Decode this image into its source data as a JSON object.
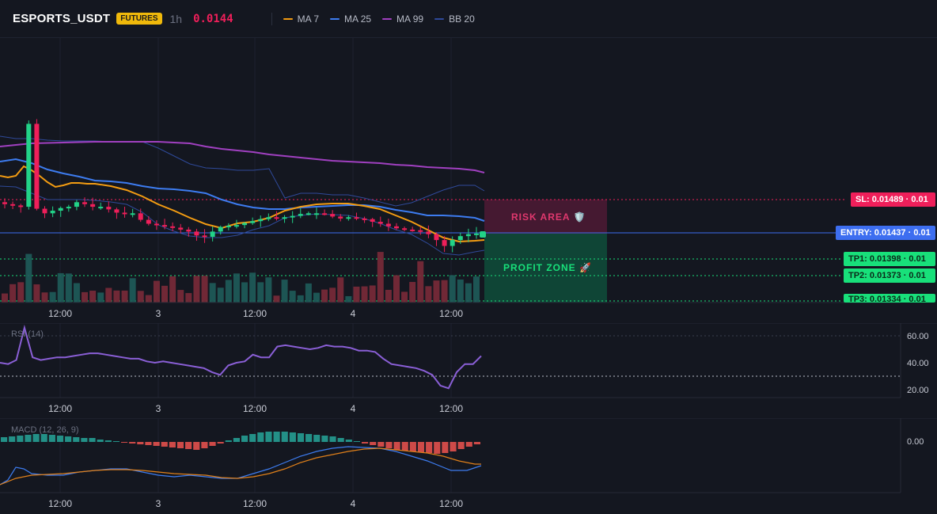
{
  "header": {
    "symbol": "ESPORTS_USDT",
    "badge": "FUTURES",
    "timeframe": "1h",
    "price": "0.0144",
    "indicators": [
      {
        "label": "MA 7",
        "color": "#f39c12"
      },
      {
        "label": "MA 25",
        "color": "#3d7cf0"
      },
      {
        "label": "MA 99",
        "color": "#a040c0"
      },
      {
        "label": "BB 20",
        "color": "#2f4a9a"
      }
    ]
  },
  "time_axis": [
    "12:00",
    "3",
    "12:00",
    "4",
    "12:00"
  ],
  "levels": {
    "sl": {
      "label": "SL: 0.01489 · 0.01",
      "color": "#ef1f5a"
    },
    "entry": {
      "label": "ENTRY: 0.01437 · 0.01",
      "color": "#3d6ef0"
    },
    "tp1": {
      "label": "TP1: 0.01398 · 0.01",
      "color": "#18e07a"
    },
    "tp2": {
      "label": "TP2: 0.01373 · 0.01",
      "color": "#18e07a"
    },
    "tp3": {
      "label": "TP3: 0.01334 · 0.01",
      "color": "#18e07a"
    }
  },
  "zones": {
    "risk": "RISK AREA 🛡️",
    "profit": "PROFIT ZONE 🚀"
  },
  "rsi": {
    "label": "RSI (14)",
    "axis": [
      "60.00",
      "40.00",
      "20.00"
    ]
  },
  "macd": {
    "label": "MACD (12, 26, 9)",
    "axis": [
      "0.00"
    ]
  },
  "chart_data": {
    "type": "line",
    "price_series": {
      "close": [
        0.01482,
        0.0148,
        0.01478,
        0.01605,
        0.01475,
        0.01468,
        0.01472,
        0.01476,
        0.01478,
        0.01485,
        0.01482,
        0.01478,
        0.01478,
        0.01474,
        0.01469,
        0.01467,
        0.01468,
        0.01458,
        0.01452,
        0.0145,
        0.01448,
        0.01446,
        0.01443,
        0.0144,
        0.01434,
        0.01432,
        0.0144,
        0.01447,
        0.01449,
        0.0145,
        0.01453,
        0.01456,
        0.01459,
        0.01462,
        0.01461,
        0.01462,
        0.01464,
        0.01467,
        0.01468,
        0.01468,
        0.01467,
        0.01463,
        0.0146,
        0.01462,
        0.0146,
        0.01459,
        0.01455,
        0.01452,
        0.01448,
        0.01445,
        0.01443,
        0.01442,
        0.0144,
        0.01436,
        0.01427,
        0.01418,
        0.01427,
        0.01433,
        0.01436,
        0.01437
      ]
    },
    "ma99": [
      0.0151,
      0.01509,
      0.01508,
      0.01507,
      0.01505,
      0.01503,
      0.015,
      0.01496,
      0.0149,
      0.01486,
      0.01483
    ],
    "rsi14": [
      40,
      39,
      42,
      66,
      44,
      42,
      43,
      44,
      44,
      45,
      46,
      47,
      47,
      46,
      45,
      44,
      43,
      43,
      41,
      40,
      41,
      40,
      39,
      38,
      37,
      36,
      33,
      31,
      38,
      40,
      41,
      46,
      44,
      44,
      52,
      53,
      52,
      51,
      50,
      51,
      53,
      52,
      52,
      51,
      49,
      49,
      48,
      43,
      39,
      38,
      37,
      36,
      34,
      31,
      23,
      21,
      33,
      39,
      39,
      45
    ],
    "macd_histogram": [
      0.6,
      0.7,
      0.8,
      0.9,
      1.0,
      1.0,
      0.9,
      0.8,
      0.7,
      0.6,
      0.5,
      0.5,
      0.3,
      0.2,
      0.1,
      -0.1,
      -0.2,
      -0.3,
      -0.4,
      -0.5,
      -0.6,
      -0.7,
      -0.8,
      -0.9,
      -1.0,
      -0.8,
      -0.5,
      -0.2,
      0.2,
      0.5,
      0.8,
      1.0,
      1.2,
      1.3,
      1.3,
      1.3,
      1.2,
      1.1,
      1.0,
      0.9,
      0.8,
      0.7,
      0.5,
      0.3,
      0.1,
      -0.2,
      -0.4,
      -0.6,
      -0.8,
      -1.0,
      -1.1,
      -1.2,
      -1.3,
      -1.4,
      -1.5,
      -1.4,
      -1.2,
      -0.9,
      -0.6,
      -0.3
    ]
  }
}
